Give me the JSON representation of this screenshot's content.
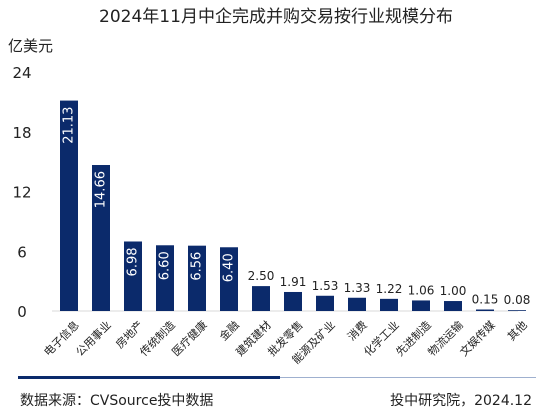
{
  "chart_data": {
    "type": "bar",
    "title": "2024年11月中企完成并购交易按行业规模分布",
    "ylabel": "亿美元",
    "ylim": [
      0,
      24
    ],
    "yticks": [
      0,
      6,
      12,
      18,
      24
    ],
    "grid": false,
    "categories": [
      "电子信息",
      "公用事业",
      "房地产",
      "传统制造",
      "医疗健康",
      "金融",
      "建筑建材",
      "批发零售",
      "能源及矿业",
      "消费",
      "化学工业",
      "先进制造",
      "物流运输",
      "文娱传媒",
      "其他"
    ],
    "values": [
      21.13,
      14.66,
      6.98,
      6.6,
      6.56,
      6.4,
      2.5,
      1.91,
      1.53,
      1.33,
      1.22,
      1.06,
      1.0,
      0.15,
      0.08
    ],
    "value_labels": [
      "21.13",
      "14.66",
      "6.98",
      "6.60",
      "6.56",
      "6.40",
      "2.50",
      "1.91",
      "1.53",
      "1.33",
      "1.22",
      "1.06",
      "1.00",
      "0.15",
      "0.08"
    ],
    "colors": {
      "bar": "#0b2a6b",
      "label_inside": "#ffffff",
      "label_outside": "#222222"
    }
  },
  "footer": {
    "source": "数据来源：CVSource投中数据",
    "credit": "投中研究院，2024.12"
  }
}
